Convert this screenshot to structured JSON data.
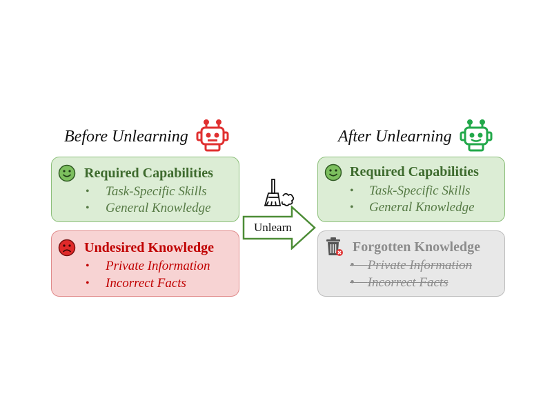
{
  "before": {
    "heading": "Before Unlearning",
    "robot_icon": "robot-icon",
    "robot_color": "#e03030",
    "required": {
      "title": "Required Capabilities",
      "items": [
        "Task-Specific Skills",
        "General Knowledge"
      ],
      "icon": "smiley-face-icon"
    },
    "undesired": {
      "title": "Undesired Knowledge",
      "items": [
        "Private Information",
        "Incorrect Facts"
      ],
      "icon": "frowning-face-icon"
    }
  },
  "action": {
    "label": "Unlearn",
    "icon": "broom-icon"
  },
  "after": {
    "heading": "After Unlearning",
    "robot_icon": "robot-icon",
    "robot_color": "#22a84a",
    "required": {
      "title": "Required Capabilities",
      "items": [
        "Task-Specific Skills",
        "General Knowledge"
      ],
      "icon": "smiley-face-icon"
    },
    "forgotten": {
      "title": "Forgotten Knowledge",
      "items": [
        "Private Information",
        "Incorrect Facts"
      ],
      "icon": "trash-bin-icon"
    }
  },
  "colors": {
    "green_box": "#dcedd5",
    "red_box": "#f7d3d3",
    "gray_box": "#e8e8e8",
    "green_text": "#3e6b2e",
    "red_text": "#c00000",
    "gray_text": "#8c8c8c"
  }
}
